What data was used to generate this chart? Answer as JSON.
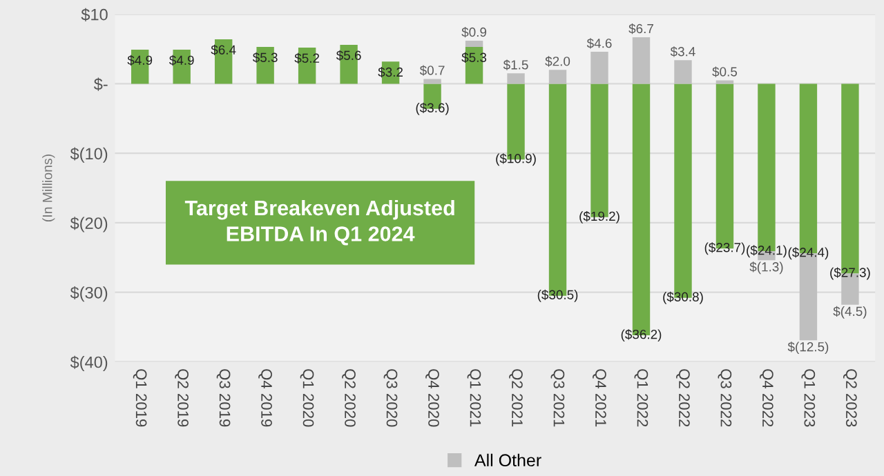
{
  "chart_data": {
    "type": "bar",
    "stacked": true,
    "ylabel": "(In Millions)",
    "categories": [
      "Q1 2019",
      "Q2 2019",
      "Q3 2019",
      "Q4 2019",
      "Q1 2020",
      "Q2 2020",
      "Q3 2020",
      "Q4 2020",
      "Q1 2021",
      "Q2 2021",
      "Q3 2021",
      "Q4 2021",
      "Q1 2022",
      "Q2 2022",
      "Q3 2022",
      "Q4 2022",
      "Q1 2023",
      "Q2 2023"
    ],
    "series": [
      {
        "color": "#70ad47",
        "values": [
          4.9,
          4.9,
          6.4,
          5.3,
          5.2,
          5.6,
          3.2,
          -3.6,
          5.3,
          -10.9,
          -30.5,
          -19.2,
          -36.2,
          -30.8,
          -23.7,
          -24.1,
          -24.4,
          -27.3
        ],
        "value_labels": [
          "$4.9",
          "$4.9",
          "$6.4",
          "$5.3",
          "$5.2",
          "$5.6",
          "$3.2",
          "($3.6)",
          "$5.3",
          "($10.9)",
          "($30.5)",
          "($19.2)",
          "($36.2)",
          "($30.8)",
          "($23.7)",
          "($24.1)",
          "($24.4)",
          "($27.3)"
        ]
      },
      {
        "name": "All Other",
        "color": "#bfbfbf",
        "values": [
          null,
          null,
          null,
          null,
          null,
          null,
          null,
          0.7,
          0.9,
          1.5,
          2.0,
          4.6,
          6.7,
          3.4,
          0.5,
          -1.3,
          -12.5,
          -4.5
        ],
        "value_labels": [
          null,
          null,
          null,
          null,
          null,
          null,
          null,
          "$0.7",
          "$0.9",
          "$1.5",
          "$2.0",
          "$4.6",
          "$6.7",
          "$3.4",
          "$0.5",
          "$(1.3)",
          "$(12.5)",
          "$(4.5)"
        ]
      }
    ],
    "ylim": [
      -40,
      10
    ],
    "yticks": [
      {
        "value": 10,
        "label": "$10"
      },
      {
        "value": 0,
        "label": "$-"
      },
      {
        "value": -10,
        "label": "$(10)"
      },
      {
        "value": -20,
        "label": "$(20)"
      },
      {
        "value": -30,
        "label": "$(30)"
      },
      {
        "value": -40,
        "label": "$(40)"
      }
    ],
    "grid": "y",
    "legend": "bottom",
    "annotations": [
      "Target Breakeven Adjusted EBITDA In Q1 2024"
    ]
  }
}
